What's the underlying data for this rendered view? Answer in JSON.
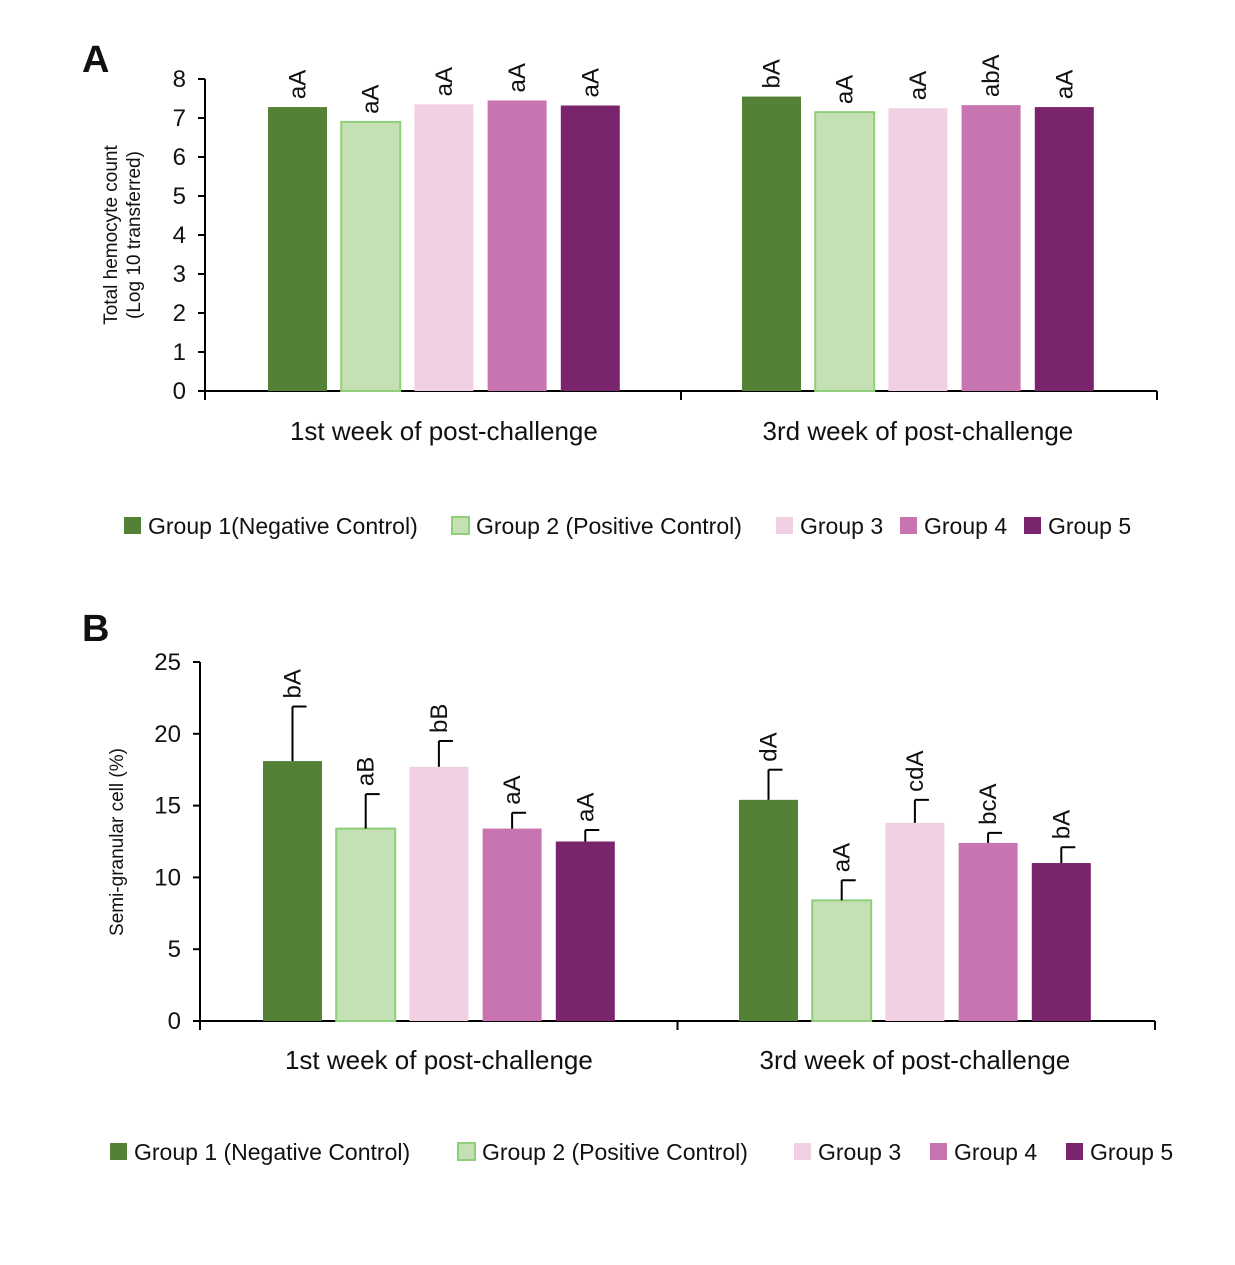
{
  "colors": {
    "group1": "#538135",
    "group2": "#c5e0b4",
    "group2_stroke": "#8fcf7a",
    "group3": "#f2d0e4",
    "group4": "#c874b0",
    "group5": "#7a246d",
    "axis": "#000000"
  },
  "chart_data": [
    {
      "type": "bar",
      "panel": "A",
      "title": "",
      "ylabel_lines": [
        "Total hemocyte count",
        "(Log 10 transferred)"
      ],
      "xlabel": "",
      "ylim": [
        0,
        8
      ],
      "yticks": [
        "0",
        "1",
        "2",
        "3",
        "4",
        "5",
        "6",
        "7",
        "8"
      ],
      "categories": [
        "1st week of post-challenge",
        "3rd week of post-challenge"
      ],
      "series": [
        {
          "name": "Group 1(Negative Control)",
          "color_key": "group1",
          "values": [
            7.28,
            7.55
          ],
          "labels": [
            "aA",
            "bA"
          ]
        },
        {
          "name": "Group 2 (Positive Control)",
          "color_key": "group2",
          "values": [
            6.9,
            7.15
          ],
          "labels": [
            "aA",
            "aA"
          ]
        },
        {
          "name": "Group 3",
          "color_key": "group3",
          "values": [
            7.35,
            7.25
          ],
          "labels": [
            "aA",
            "aA"
          ]
        },
        {
          "name": "Group 4",
          "color_key": "group4",
          "values": [
            7.45,
            7.33
          ],
          "labels": [
            "aA",
            "abA"
          ]
        },
        {
          "name": "Group 5",
          "color_key": "group5",
          "values": [
            7.32,
            7.28
          ],
          "labels": [
            "aA",
            "aA"
          ]
        }
      ],
      "legend_position": "bottom"
    },
    {
      "type": "bar",
      "panel": "B",
      "title": "",
      "ylabel_lines": [
        "Semi-granular cell (%)"
      ],
      "xlabel": "",
      "ylim": [
        0,
        25
      ],
      "yticks": [
        "0",
        "5",
        "10",
        "15",
        "20",
        "25"
      ],
      "categories": [
        "1st week of post-challenge",
        "3rd week of post-challenge"
      ],
      "series": [
        {
          "name": "Group 1 (Negative Control)",
          "color_key": "group1",
          "values": [
            18.1,
            15.4
          ],
          "errors": [
            3.8,
            2.1
          ],
          "labels": [
            "bA",
            "dA"
          ]
        },
        {
          "name": "Group 2 (Positive Control)",
          "color_key": "group2",
          "values": [
            13.4,
            8.4
          ],
          "errors": [
            2.4,
            1.4
          ],
          "labels": [
            "aB",
            "aA"
          ]
        },
        {
          "name": "Group 3",
          "color_key": "group3",
          "values": [
            17.7,
            13.8
          ],
          "errors": [
            1.8,
            1.6
          ],
          "labels": [
            "bB",
            "cdA"
          ]
        },
        {
          "name": "Group 4",
          "color_key": "group4",
          "values": [
            13.4,
            12.4
          ],
          "errors": [
            1.1,
            0.7
          ],
          "labels": [
            "aA",
            "bcA"
          ]
        },
        {
          "name": "Group 5",
          "color_key": "group5",
          "values": [
            12.5,
            11.0
          ],
          "errors": [
            0.8,
            1.1
          ],
          "labels": [
            "aA",
            "bA"
          ]
        }
      ],
      "legend_position": "bottom"
    }
  ]
}
